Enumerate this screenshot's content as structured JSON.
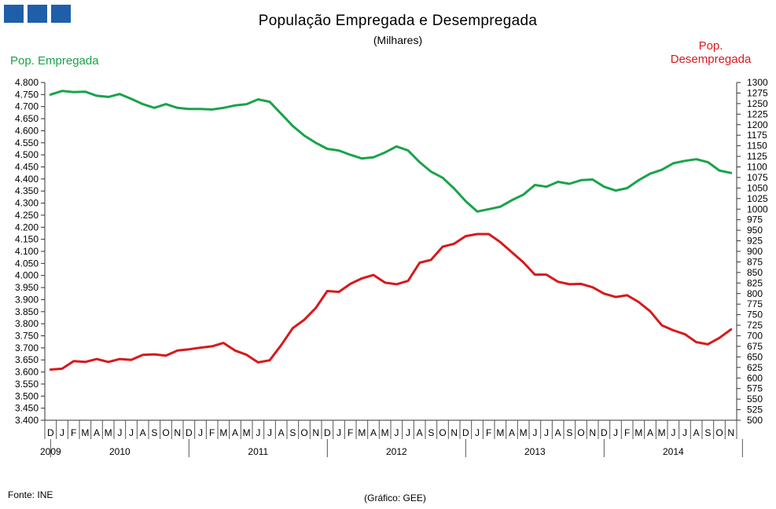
{
  "chart_data": {
    "type": "line",
    "title": "População Empregada e Desempregada",
    "subtitle": "(Milhares)",
    "left_axis_label": "Pop. Empregada",
    "right_axis_label": [
      "Pop.",
      "Desempregada"
    ],
    "source": "Fonte: INE",
    "credit": "(Gráfico: GEE)",
    "y_left": {
      "min": 3400,
      "max": 4800,
      "step": 50,
      "ticks": [
        "4.800",
        "4.750",
        "4.700",
        "4.650",
        "4.600",
        "4.550",
        "4.500",
        "4.450",
        "4.400",
        "4.350",
        "4.300",
        "4.250",
        "4.200",
        "4.150",
        "4.100",
        "4.050",
        "4.000",
        "3.950",
        "3.900",
        "3.850",
        "3.800",
        "3.750",
        "3.700",
        "3.650",
        "3.600",
        "3.550",
        "3.500",
        "3.450",
        "3.400"
      ]
    },
    "y_right": {
      "min": 500,
      "max": 1300,
      "step": 25,
      "ticks": [
        "1300",
        "1275",
        "1250",
        "1225",
        "1200",
        "1175",
        "1150",
        "1125",
        "1100",
        "1075",
        "1050",
        "1025",
        "1000",
        "975",
        "950",
        "925",
        "900",
        "875",
        "850",
        "825",
        "800",
        "775",
        "750",
        "725",
        "700",
        "675",
        "650",
        "625",
        "600",
        "575",
        "550",
        "525",
        "500"
      ]
    },
    "months": [
      "D",
      "J",
      "F",
      "M",
      "A",
      "M",
      "J",
      "J",
      "A",
      "S",
      "O",
      "N",
      "D",
      "J",
      "F",
      "M",
      "A",
      "M",
      "J",
      "J",
      "A",
      "S",
      "O",
      "N",
      "D",
      "J",
      "F",
      "M",
      "A",
      "M",
      "J",
      "J",
      "A",
      "S",
      "O",
      "N",
      "D",
      "J",
      "F",
      "M",
      "A",
      "M",
      "J",
      "J",
      "A",
      "S",
      "O",
      "N",
      "D",
      "J",
      "F",
      "M",
      "A",
      "M",
      "J",
      "J",
      "A",
      "S",
      "O",
      "N"
    ],
    "years": [
      {
        "label": "2009",
        "month_index": 0
      },
      {
        "label": "2010",
        "month_index": 6
      },
      {
        "label": "2011",
        "month_index": 18
      },
      {
        "label": "2012",
        "month_index": 30
      },
      {
        "label": "2013",
        "month_index": 42
      },
      {
        "label": "2014",
        "month_index": 54
      }
    ],
    "year_separators": [
      0.5,
      12.5,
      24.5,
      36.5,
      48.5,
      60.5
    ],
    "series": [
      {
        "name": "Pop. Empregada",
        "axis": "left",
        "color": "#1aa34a",
        "values": [
          4750,
          4765,
          4760,
          4762,
          4745,
          4740,
          4752,
          4732,
          4710,
          4695,
          4710,
          4695,
          4690,
          4690,
          4688,
          4695,
          4705,
          4710,
          4730,
          4720,
          4670,
          4620,
          4580,
          4550,
          4525,
          4518,
          4500,
          4485,
          4490,
          4510,
          4535,
          4518,
          4470,
          4430,
          4405,
          4360,
          4308,
          4265,
          4275,
          4285,
          4312,
          4335,
          4375,
          4368,
          4388,
          4380,
          4395,
          4398,
          4368,
          4352,
          4362,
          4395,
          4422,
          4438,
          4465,
          4475,
          4482,
          4470,
          4435,
          4425
        ]
      },
      {
        "name": "Pop. Desempregada",
        "axis": "right",
        "color": "#d7191c",
        "values": [
          620,
          622,
          640,
          638,
          645,
          638,
          645,
          643,
          655,
          656,
          653,
          665,
          668,
          672,
          675,
          683,
          665,
          655,
          637,
          642,
          678,
          718,
          738,
          766,
          806,
          804,
          823,
          836,
          844,
          826,
          822,
          830,
          873,
          880,
          911,
          918,
          936,
          941,
          941,
          922,
          898,
          874,
          845,
          845,
          828,
          822,
          823,
          815,
          800,
          792,
          796,
          780,
          758,
          725,
          713,
          704,
          685,
          680,
          695,
          715
        ]
      }
    ]
  }
}
